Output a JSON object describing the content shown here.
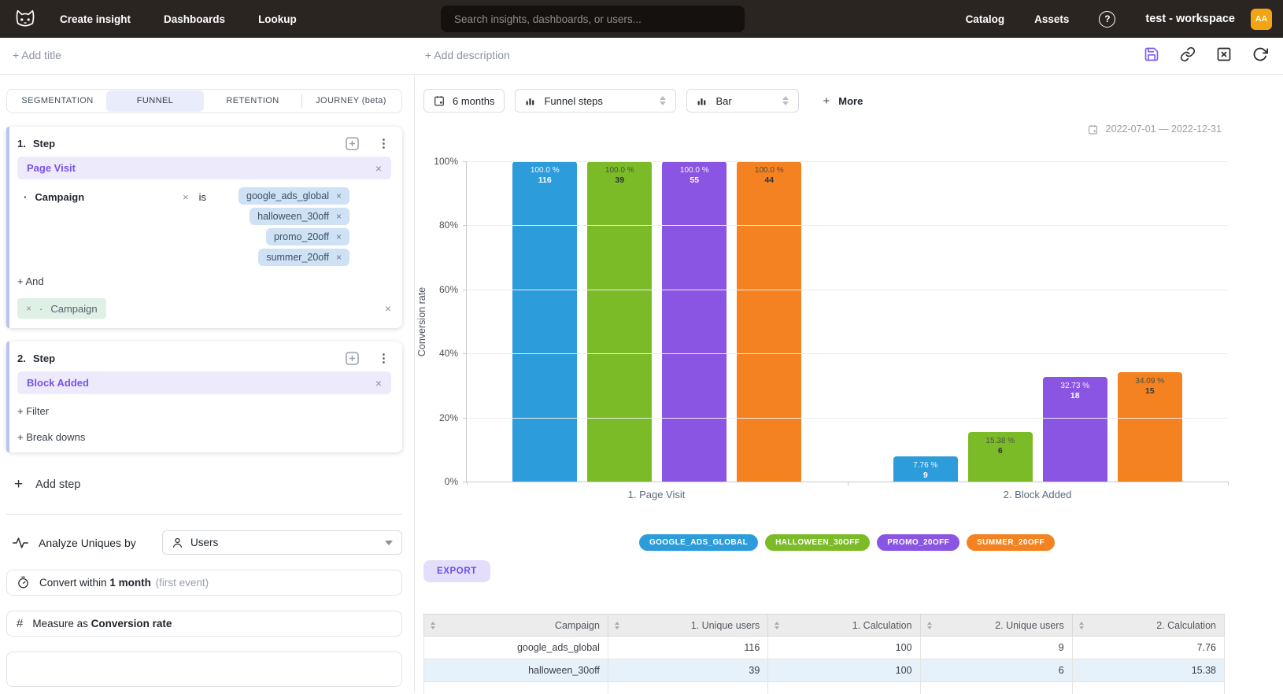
{
  "navbar": {
    "brand_icon": "cat-logo",
    "links": [
      "Create insight",
      "Dashboards",
      "Lookup"
    ],
    "search": {
      "placeholder": "Search insights, dashboards, or users..."
    },
    "right_links": [
      "Catalog",
      "Assets"
    ],
    "help_glyph": "?",
    "workspace_label": "test - workspace",
    "avatar_initials": "AA"
  },
  "titlebar": {
    "add_title": "+ Add title",
    "add_description": "+ Add description",
    "icons": [
      "save-icon",
      "link-icon",
      "close-square-icon",
      "refresh-icon"
    ]
  },
  "builder": {
    "tabs": [
      {
        "label": "SEGMENTATION",
        "active": false
      },
      {
        "label": "FUNNEL",
        "active": true
      },
      {
        "label": "RETENTION",
        "active": false
      },
      {
        "label": "JOURNEY (beta)",
        "active": false
      }
    ],
    "step1": {
      "index": "1.",
      "title": "Step",
      "event": "Page Visit",
      "filter": {
        "bullet": "·",
        "property": "Campaign",
        "operator": "is",
        "values": [
          "google_ads_global",
          "halloween_30off",
          "promo_20off",
          "summer_20off"
        ]
      },
      "and_label": "+ And",
      "extra_filter": {
        "bullet": "·",
        "property": "Campaign"
      }
    },
    "step2": {
      "index": "2.",
      "title": "Step",
      "event": "Block Added",
      "filter_label": "+ Filter",
      "breakdown_label": "+ Break downs"
    },
    "add_step_label": "Add step",
    "analyze": {
      "label": "Analyze Uniques by",
      "value": "Users"
    },
    "convert": {
      "prefix": "Convert within",
      "value": "1 month",
      "suffix": "(first event)"
    },
    "measure": {
      "prefix": "Measure as",
      "value": "Conversion rate"
    }
  },
  "viz": {
    "controls": {
      "date_range_button": "6 months",
      "display_select": "Funnel steps",
      "chart_type_select": "Bar",
      "more_label": "More"
    },
    "date_range": "2022-07-01 — 2022-12-31",
    "export_label": "EXPORT"
  },
  "chart_data": {
    "type": "bar",
    "title": "",
    "xlabel": "",
    "ylabel": "Conversion rate",
    "ylim": [
      0,
      100
    ],
    "yticks": [
      100,
      80,
      60,
      40,
      20,
      0
    ],
    "ytick_suffix": "%",
    "grid": true,
    "legend_position": "bottom",
    "categories": [
      "1. Page Visit",
      "2. Block Added"
    ],
    "series": [
      {
        "name": "GOOGLE_ADS_GLOBAL",
        "color": "#2D9CDB",
        "dark_label": false,
        "values": [
          100.0,
          7.76
        ],
        "value_labels": [
          "100.0 %",
          "7.76 %"
        ],
        "counts": [
          116,
          9
        ]
      },
      {
        "name": "HALLOWEEN_30OFF",
        "color": "#7CBB28",
        "dark_label": true,
        "values": [
          100.0,
          15.38
        ],
        "value_labels": [
          "100.0 %",
          "15.38 %"
        ],
        "counts": [
          39,
          6
        ]
      },
      {
        "name": "PROMO_20OFF",
        "color": "#8A55E2",
        "dark_label": false,
        "values": [
          100.0,
          32.73
        ],
        "value_labels": [
          "100.0 %",
          "32.73 %"
        ],
        "counts": [
          55,
          18
        ]
      },
      {
        "name": "SUMMER_20OFF",
        "color": "#F58220",
        "dark_label": true,
        "values": [
          100.0,
          34.09
        ],
        "value_labels": [
          "100.0 %",
          "34.09 %"
        ],
        "counts": [
          44,
          15
        ]
      }
    ]
  },
  "table": {
    "columns": [
      "Campaign",
      "1. Unique users",
      "1. Calculation",
      "2. Unique users",
      "2. Calculation"
    ],
    "rows": [
      {
        "cells": [
          "google_ads_global",
          "116",
          "100",
          "9",
          "7.76"
        ],
        "highlight": false
      },
      {
        "cells": [
          "halloween_30off",
          "39",
          "100",
          "6",
          "15.38"
        ],
        "highlight": true
      }
    ]
  },
  "colors": {
    "navbar_bg": "#2B2522",
    "accent_purple": "#7C5CF6",
    "avatar_bg": "#F2A514",
    "event_chip_bg": "#EDEAFB",
    "event_chip_text": "#7A53E6",
    "filter_chip_bg": "#CFE1F4",
    "mint_chip_bg": "#DFF0E5",
    "table_highlight": "#E7F1F9"
  }
}
